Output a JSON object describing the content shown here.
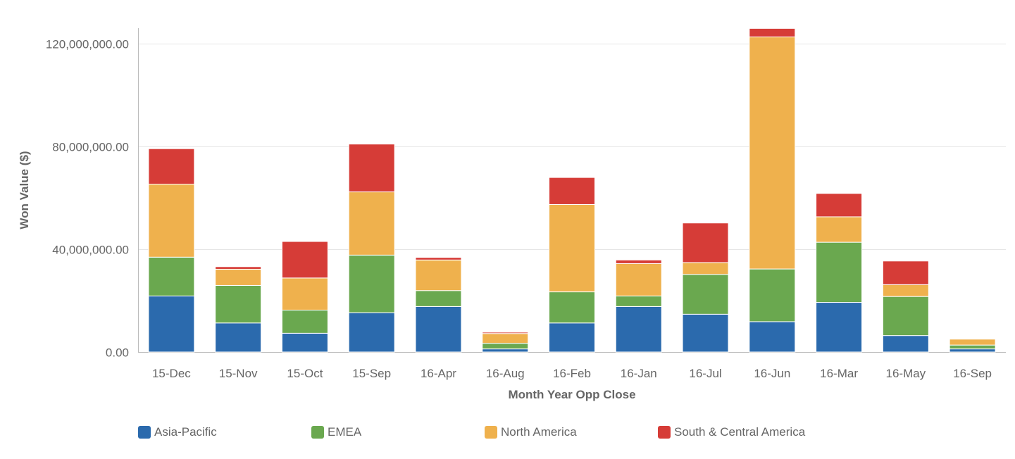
{
  "chart_data": {
    "type": "bar",
    "stacked": true,
    "title": "",
    "xlabel": "Month Year Opp Close",
    "ylabel": "Won Value ($)",
    "ylim": [
      0,
      126000000
    ],
    "yticks": [
      0,
      40000000,
      80000000,
      120000000
    ],
    "ytick_labels": [
      "0.00",
      "40,000,000.00",
      "80,000,000.00",
      "120,000,000.00"
    ],
    "grid": true,
    "legend_position": "bottom-left",
    "categories": [
      "15-Dec",
      "15-Nov",
      "15-Oct",
      "15-Sep",
      "16-Apr",
      "16-Aug",
      "16-Feb",
      "16-Jan",
      "16-Jul",
      "16-Jun",
      "16-Mar",
      "16-May",
      "16-Sep"
    ],
    "series": [
      {
        "name": "Asia-Pacific",
        "color": "#2b6aad",
        "values": [
          21800000,
          11300000,
          7300000,
          15300000,
          17700000,
          1200000,
          11300000,
          17700000,
          14700000,
          11800000,
          19300000,
          6400000,
          1200000
        ]
      },
      {
        "name": "EMEA",
        "color": "#6aa84f",
        "values": [
          15100000,
          14600000,
          9000000,
          22400000,
          6200000,
          2200000,
          12100000,
          4100000,
          15500000,
          20500000,
          23400000,
          15200000,
          1500000
        ]
      },
      {
        "name": "North America",
        "color": "#efb14d",
        "values": [
          28400000,
          6300000,
          12500000,
          24600000,
          11900000,
          3800000,
          34000000,
          12600000,
          4600000,
          90300000,
          9900000,
          4600000,
          2300000
        ]
      },
      {
        "name": "South & Central America",
        "color": "#d63c37",
        "values": [
          13800000,
          1000000,
          14200000,
          18600000,
          1000000,
          500000,
          10500000,
          1400000,
          15400000,
          3300000,
          9100000,
          9200000,
          0
        ]
      }
    ]
  }
}
